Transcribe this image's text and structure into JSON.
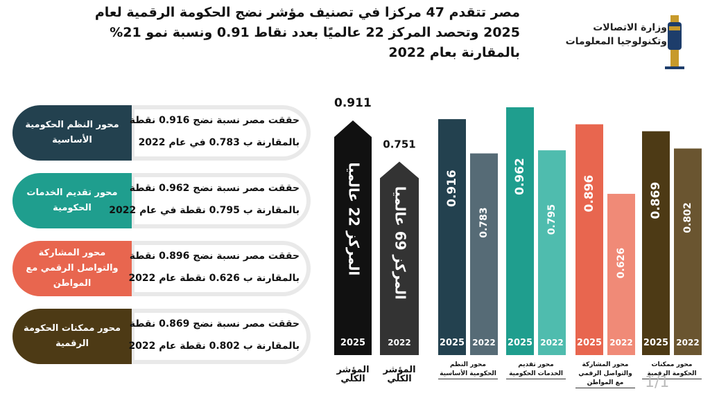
{
  "header": {
    "title_lines": [
      "مصر تتقدم 47 مركزا في تصنيف مؤشر نضج الحكومة الرقمية لعام",
      "2025 وتحصد المركز 22 عالميًا بعدد نقاط 0.91  ونسبة نمو 21%",
      "بالمقارنة بعام 2022"
    ],
    "logo_lines": [
      "وزارة الاتصالات",
      "وتكنولوجيا المعلومات"
    ]
  },
  "cards": [
    {
      "label": "محور النظم الحكومية الأساسية",
      "lines": [
        "حققت مصر نسبة نضج 0.916 نقطة",
        "بالمقارنة ب 0.783 في عام 2022"
      ],
      "color": "#23414f"
    },
    {
      "label": "محور تقديم الخدمات الحكومية",
      "lines": [
        "حققت مصر نسبة نضج 0.962 نقطة",
        "بالمقارنة ب 0.795 نقطة في عام 2022"
      ],
      "color": "#1f9e8e"
    },
    {
      "label": "محور المشاركة والتواصل الرقمي مع المواطن",
      "lines": [
        "حققت مصر نسبة نضج 0.896 نقطة",
        "بالمقارنة ب 0.626 نقطة عام 2022"
      ],
      "color": "#e8664f"
    },
    {
      "label": "محور ممكنات الحكومة الرقمية",
      "lines": [
        "حققت مصر نسبة نضج 0.869 نقطة",
        "بالمقارنة ب 0.802 نقطة عام 2022"
      ],
      "color": "#4d3a15"
    }
  ],
  "page_marker": "1/1",
  "chart_data": {
    "type": "bar",
    "categories": [
      "المؤشر الكلي",
      "محور النظم الحكومية الأساسية",
      "محور تقديم الخدمات الحكومية",
      "محور المشاركة والتواصل الرقمي مع المواطن",
      "محور ممكنات الحكومة الرقمية"
    ],
    "rank_labels": [
      "المركز 22 عالميا",
      "المركز 69 عالميا"
    ],
    "series": [
      {
        "name": "2025",
        "values": [
          0.911,
          0.916,
          0.962,
          0.896,
          0.869
        ],
        "colors": [
          "#111111",
          "#23414f",
          "#1f9e8e",
          "#e8664f",
          "#4d3a15"
        ]
      },
      {
        "name": "2022",
        "values": [
          0.751,
          0.783,
          0.795,
          0.626,
          0.802
        ],
        "colors": [
          "#333333",
          "#566b76",
          "#4fbcae",
          "#f08a77",
          "#6a5530"
        ]
      }
    ]
  }
}
